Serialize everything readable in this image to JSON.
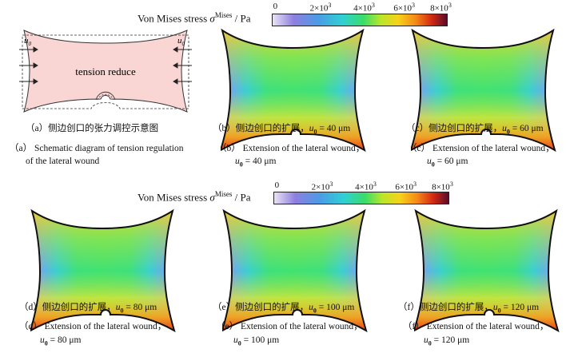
{
  "colorbar_top": {
    "title": "Von Mises stress",
    "symbol": "σ",
    "sup": "Mises",
    "unit": "/ Pa",
    "ticks": [
      {
        "mant": "0",
        "exp": ""
      },
      {
        "mant": "2×10",
        "exp": "3"
      },
      {
        "mant": "4×10",
        "exp": "3"
      },
      {
        "mant": "6×10",
        "exp": "3"
      },
      {
        "mant": "8×10",
        "exp": "3"
      }
    ]
  },
  "colorbar_bottom": {
    "title": "Von Mises stress",
    "symbol": "σ",
    "sup": "Mises",
    "unit": "/ Pa",
    "ticks": [
      {
        "mant": "0",
        "exp": ""
      },
      {
        "mant": "2×10",
        "exp": "3"
      },
      {
        "mant": "4×10",
        "exp": "3"
      },
      {
        "mant": "6×10",
        "exp": "3"
      },
      {
        "mant": "8×10",
        "exp": "3"
      }
    ]
  },
  "schematic": {
    "label": "tension reduce",
    "u_left": "u",
    "u_right": "u",
    "u_sub": "0"
  },
  "captions": {
    "a": {
      "cn": "（a）侧边创口的张力调控示意图",
      "en1": "（a） Schematic diagram of tension regulation",
      "en2": "of the lateral wound"
    },
    "b": {
      "cn": "（b）侧边创口的扩展，",
      "en1": "（b） Extension of the lateral wound，",
      "u": "u",
      "sub": "0",
      "val": " = 40 μm"
    },
    "c": {
      "cn": "（c）侧边创口的扩展，",
      "en1": "（c） Extension of the lateral wound，",
      "u": "u",
      "sub": "0",
      "val": " = 60 μm"
    },
    "d": {
      "cn": "（d）侧边创口的扩展，",
      "en1": "（d） Extension of the lateral wound，",
      "u": "u",
      "sub": "0",
      "val": " = 80 μm"
    },
    "e": {
      "cn": "（e）侧边创口的扩展，",
      "en1": "（e） Extension of the lateral wound，",
      "u": "u",
      "sub": "0",
      "val": " = 100 μm"
    },
    "f": {
      "cn": "（f）侧边创口的扩展，",
      "en1": "（f） Extension of the lateral wound，",
      "u": "u",
      "sub": "0",
      "val": " = 120 μm"
    }
  }
}
